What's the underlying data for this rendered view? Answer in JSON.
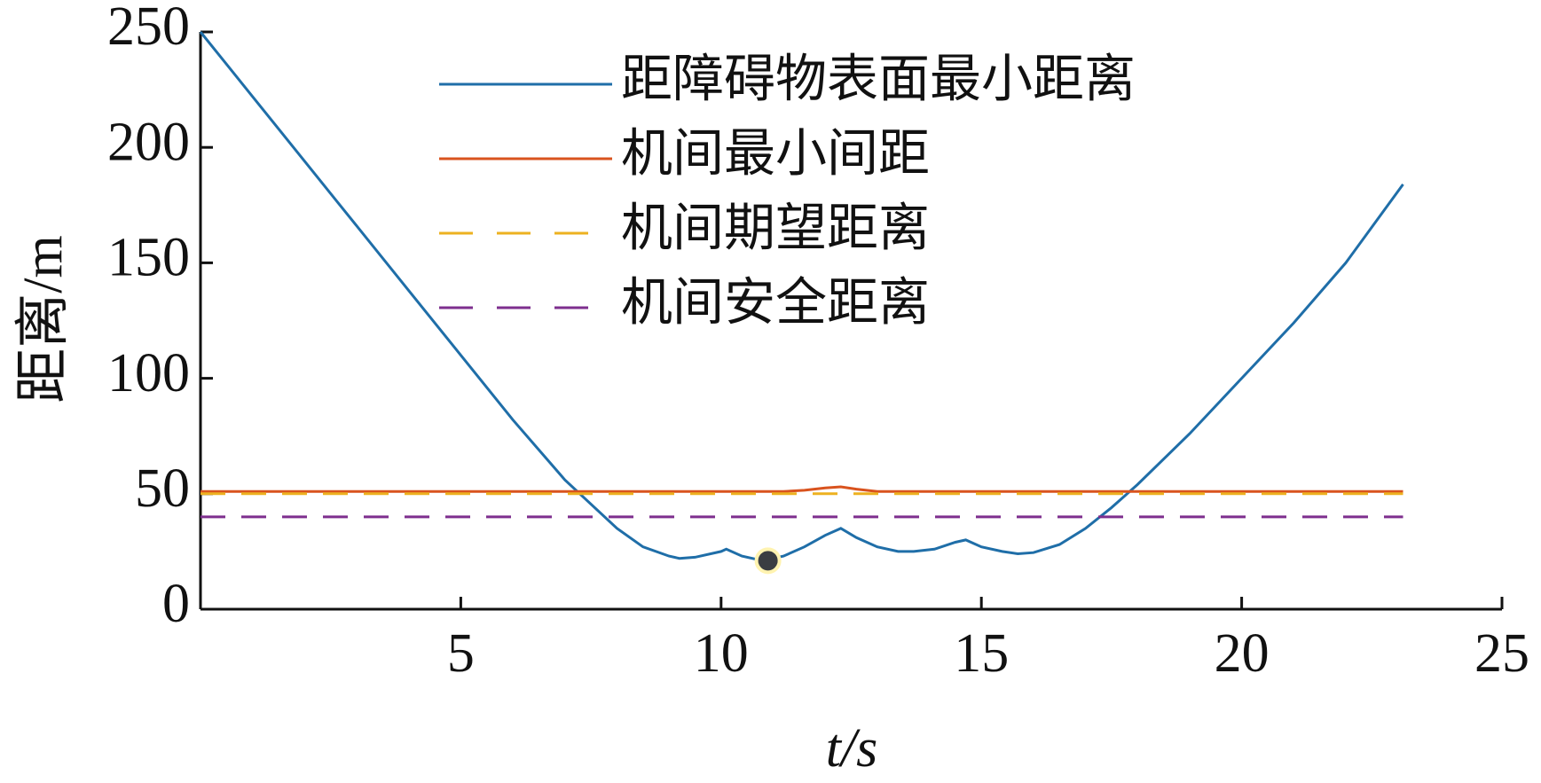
{
  "chart_data": {
    "type": "line",
    "xlabel": "t/s",
    "ylabel": "距离/m",
    "x": [
      0,
      1,
      2,
      3,
      4,
      5,
      6,
      7,
      8,
      8.5,
      9,
      9.2,
      9.5,
      10,
      10.1,
      10.4,
      10.8,
      11.2,
      11.6,
      12,
      12.3,
      12.6,
      13,
      13.4,
      13.7,
      14.1,
      14.5,
      14.7,
      15,
      15.4,
      15.7,
      16,
      16.5,
      17,
      17.5,
      18,
      19,
      20,
      21,
      22,
      23.1
    ],
    "series": [
      {
        "name": "距障碍物表面最小距离",
        "color": "#1f6ea8",
        "dashed": false,
        "values": [
          250,
          222,
          194,
          166,
          138,
          110,
          82,
          56,
          35,
          27,
          23,
          22,
          22.5,
          25,
          26,
          23,
          21,
          23,
          27,
          32,
          35,
          31,
          27,
          25,
          25,
          26,
          29,
          30,
          27,
          25,
          24,
          24.5,
          28,
          35,
          44,
          54,
          76,
          100,
          124,
          150,
          184
        ]
      },
      {
        "name": "机间最小间距",
        "color": "#d9531e",
        "dashed": false,
        "values": [
          51,
          51,
          51,
          51,
          51,
          51,
          51,
          51,
          51,
          51,
          51,
          51,
          51,
          51,
          51,
          51,
          51,
          51,
          51.5,
          52.5,
          53,
          52,
          51,
          51,
          51,
          51,
          51,
          51,
          51,
          51,
          51,
          51,
          51,
          51,
          51,
          51,
          51,
          51,
          51,
          51,
          51
        ]
      },
      {
        "name": "机间期望距离",
        "color": "#edb120",
        "dashed": true,
        "values": [
          50,
          50,
          50,
          50,
          50,
          50,
          50,
          50,
          50,
          50,
          50,
          50,
          50,
          50,
          50,
          50,
          50,
          50,
          50,
          50,
          50,
          50,
          50,
          50,
          50,
          50,
          50,
          50,
          50,
          50,
          50,
          50,
          50,
          50,
          50,
          50,
          50,
          50,
          50,
          50,
          50
        ]
      },
      {
        "name": "机间安全距离",
        "color": "#7e2f8e",
        "dashed": true,
        "values": [
          40,
          40,
          40,
          40,
          40,
          40,
          40,
          40,
          40,
          40,
          40,
          40,
          40,
          40,
          40,
          40,
          40,
          40,
          40,
          40,
          40,
          40,
          40,
          40,
          40,
          40,
          40,
          40,
          40,
          40,
          40,
          40,
          40,
          40,
          40,
          40,
          40,
          40,
          40,
          40,
          40
        ]
      }
    ],
    "highlight": {
      "x": 10.9,
      "y": 21,
      "color": "#3a3d42"
    },
    "xlim": [
      0,
      25
    ],
    "xticks": [
      5,
      10,
      15,
      20,
      25
    ],
    "ylim": [
      0,
      250
    ],
    "yticks": [
      0,
      50,
      100,
      150,
      200,
      250
    ],
    "legend": "upper-right"
  }
}
